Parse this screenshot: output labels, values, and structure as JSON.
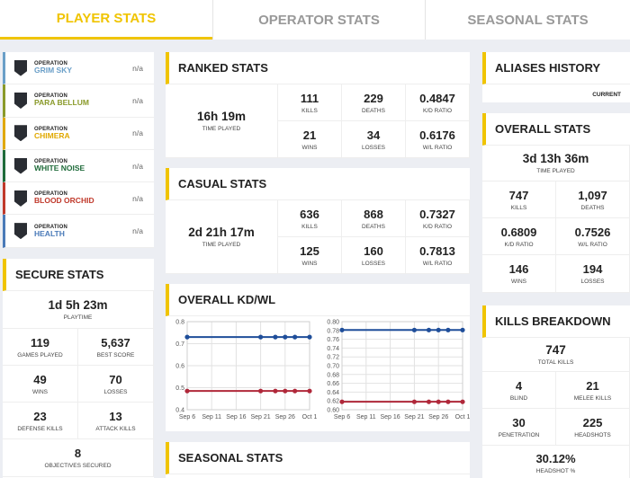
{
  "tabs": [
    {
      "label": "PLAYER STATS",
      "active": true
    },
    {
      "label": "OPERATOR STATS",
      "active": false
    },
    {
      "label": "SEASONAL STATS",
      "active": false
    }
  ],
  "operations": [
    {
      "small": "OPERATION",
      "name": "GRIM SKY",
      "color": "#6a9fc8",
      "value": "n/a"
    },
    {
      "small": "OPERATION",
      "name": "PARA BELLUM",
      "color": "#8a9a2a",
      "value": "n/a"
    },
    {
      "small": "OPERATION",
      "name": "CHIMERA",
      "color": "#e0a800",
      "value": "n/a"
    },
    {
      "small": "OPERATION",
      "name": "WHITE NOISE",
      "color": "#1f6b3a",
      "value": "n/a"
    },
    {
      "small": "OPERATION",
      "name": "BLOOD ORCHID",
      "color": "#c0392b",
      "value": "n/a"
    },
    {
      "small": "OPERATION",
      "name": "HEALTH",
      "color": "#4a7ab8",
      "value": "n/a"
    }
  ],
  "secure": {
    "title": "SECURE STATS",
    "playtime": {
      "value": "1d 5h 23m",
      "label": "PLAYTIME"
    },
    "cells": [
      {
        "value": "119",
        "label": "GAMES PLAYED"
      },
      {
        "value": "5,637",
        "label": "BEST SCORE"
      },
      {
        "value": "49",
        "label": "WINS"
      },
      {
        "value": "70",
        "label": "LOSSES"
      },
      {
        "value": "23",
        "label": "DEFENSE KILLS"
      },
      {
        "value": "13",
        "label": "ATTACK KILLS"
      }
    ],
    "objectives": {
      "value": "8",
      "label": "OBJECTIVES SECURED"
    }
  },
  "ranked": {
    "title": "RANKED STATS",
    "time": {
      "value": "16h 19m",
      "label": "TIME PLAYED"
    },
    "cells": [
      {
        "value": "111",
        "label": "KILLS"
      },
      {
        "value": "229",
        "label": "DEATHS"
      },
      {
        "value": "0.4847",
        "label": "K/D RATIO"
      },
      {
        "value": "21",
        "label": "WINS"
      },
      {
        "value": "34",
        "label": "LOSSES"
      },
      {
        "value": "0.6176",
        "label": "W/L RATIO"
      }
    ]
  },
  "casual": {
    "title": "CASUAL STATS",
    "time": {
      "value": "2d 21h 17m",
      "label": "TIME PLAYED"
    },
    "cells": [
      {
        "value": "636",
        "label": "KILLS"
      },
      {
        "value": "868",
        "label": "DEATHS"
      },
      {
        "value": "0.7327",
        "label": "K/D RATIO"
      },
      {
        "value": "125",
        "label": "WINS"
      },
      {
        "value": "160",
        "label": "LOSSES"
      },
      {
        "value": "0.7813",
        "label": "W/L RATIO"
      }
    ]
  },
  "overall_kdwl": {
    "title": "OVERALL KD/WL"
  },
  "seasonal": {
    "title": "SEASONAL STATS"
  },
  "aliases": {
    "title": "ALIASES HISTORY",
    "current_label": "CURRENT"
  },
  "overall": {
    "title": "OVERALL STATS",
    "time": {
      "value": "3d 13h 36m",
      "label": "TIME PLAYED"
    },
    "cells": [
      {
        "value": "747",
        "label": "KILLS"
      },
      {
        "value": "1,097",
        "label": "DEATHS"
      },
      {
        "value": "0.6809",
        "label": "K/D RATIO"
      },
      {
        "value": "0.7526",
        "label": "W/L RATIO"
      },
      {
        "value": "146",
        "label": "WINS"
      },
      {
        "value": "194",
        "label": "LOSSES"
      }
    ]
  },
  "kills_breakdown": {
    "title": "KILLS BREAKDOWN",
    "total": {
      "value": "747",
      "label": "TOTAL KILLS"
    },
    "cells": [
      {
        "value": "4",
        "label": "BLIND"
      },
      {
        "value": "21",
        "label": "MELEE KILLS"
      },
      {
        "value": "30",
        "label": "PENETRATION"
      },
      {
        "value": "225",
        "label": "HEADSHOTS"
      }
    ],
    "headshot": {
      "value": "30.12%",
      "label": "HEADSHOT %"
    }
  },
  "chart_data": [
    {
      "type": "line",
      "x": [
        "Sep 6",
        "Sep 21",
        "Sep 24",
        "Sep 26",
        "Sep 28",
        "Oct 1"
      ],
      "x_ticks": [
        "Sep 6",
        "Sep 11",
        "Sep 16",
        "Sep 21",
        "Sep 26",
        "Oct 1"
      ],
      "y_ticks": [
        "0.8",
        "0.7",
        "0.6",
        "0.5",
        "0.4"
      ],
      "ylim": [
        0.4,
        0.8
      ],
      "series": [
        {
          "color": "#1f4e9a",
          "values": [
            0.73,
            0.73,
            0.73,
            0.73,
            0.73,
            0.73
          ]
        },
        {
          "color": "#b0283a",
          "values": [
            0.485,
            0.485,
            0.485,
            0.485,
            0.485,
            0.485
          ]
        }
      ]
    },
    {
      "type": "line",
      "x": [
        "Sep 6",
        "Sep 21",
        "Sep 24",
        "Sep 26",
        "Sep 28",
        "Oct 1"
      ],
      "x_ticks": [
        "Sep 6",
        "Sep 11",
        "Sep 16",
        "Sep 21",
        "Sep 26",
        "Oct 1"
      ],
      "y_ticks": [
        "0.80",
        "0.78",
        "0.76",
        "0.74",
        "0.72",
        "0.70",
        "0.68",
        "0.66",
        "0.64",
        "0.62",
        "0.60"
      ],
      "ylim": [
        0.6,
        0.8
      ],
      "series": [
        {
          "color": "#1f4e9a",
          "values": [
            0.781,
            0.781,
            0.781,
            0.781,
            0.781,
            0.781
          ]
        },
        {
          "color": "#b0283a",
          "values": [
            0.618,
            0.618,
            0.618,
            0.618,
            0.618,
            0.618
          ]
        }
      ]
    }
  ]
}
